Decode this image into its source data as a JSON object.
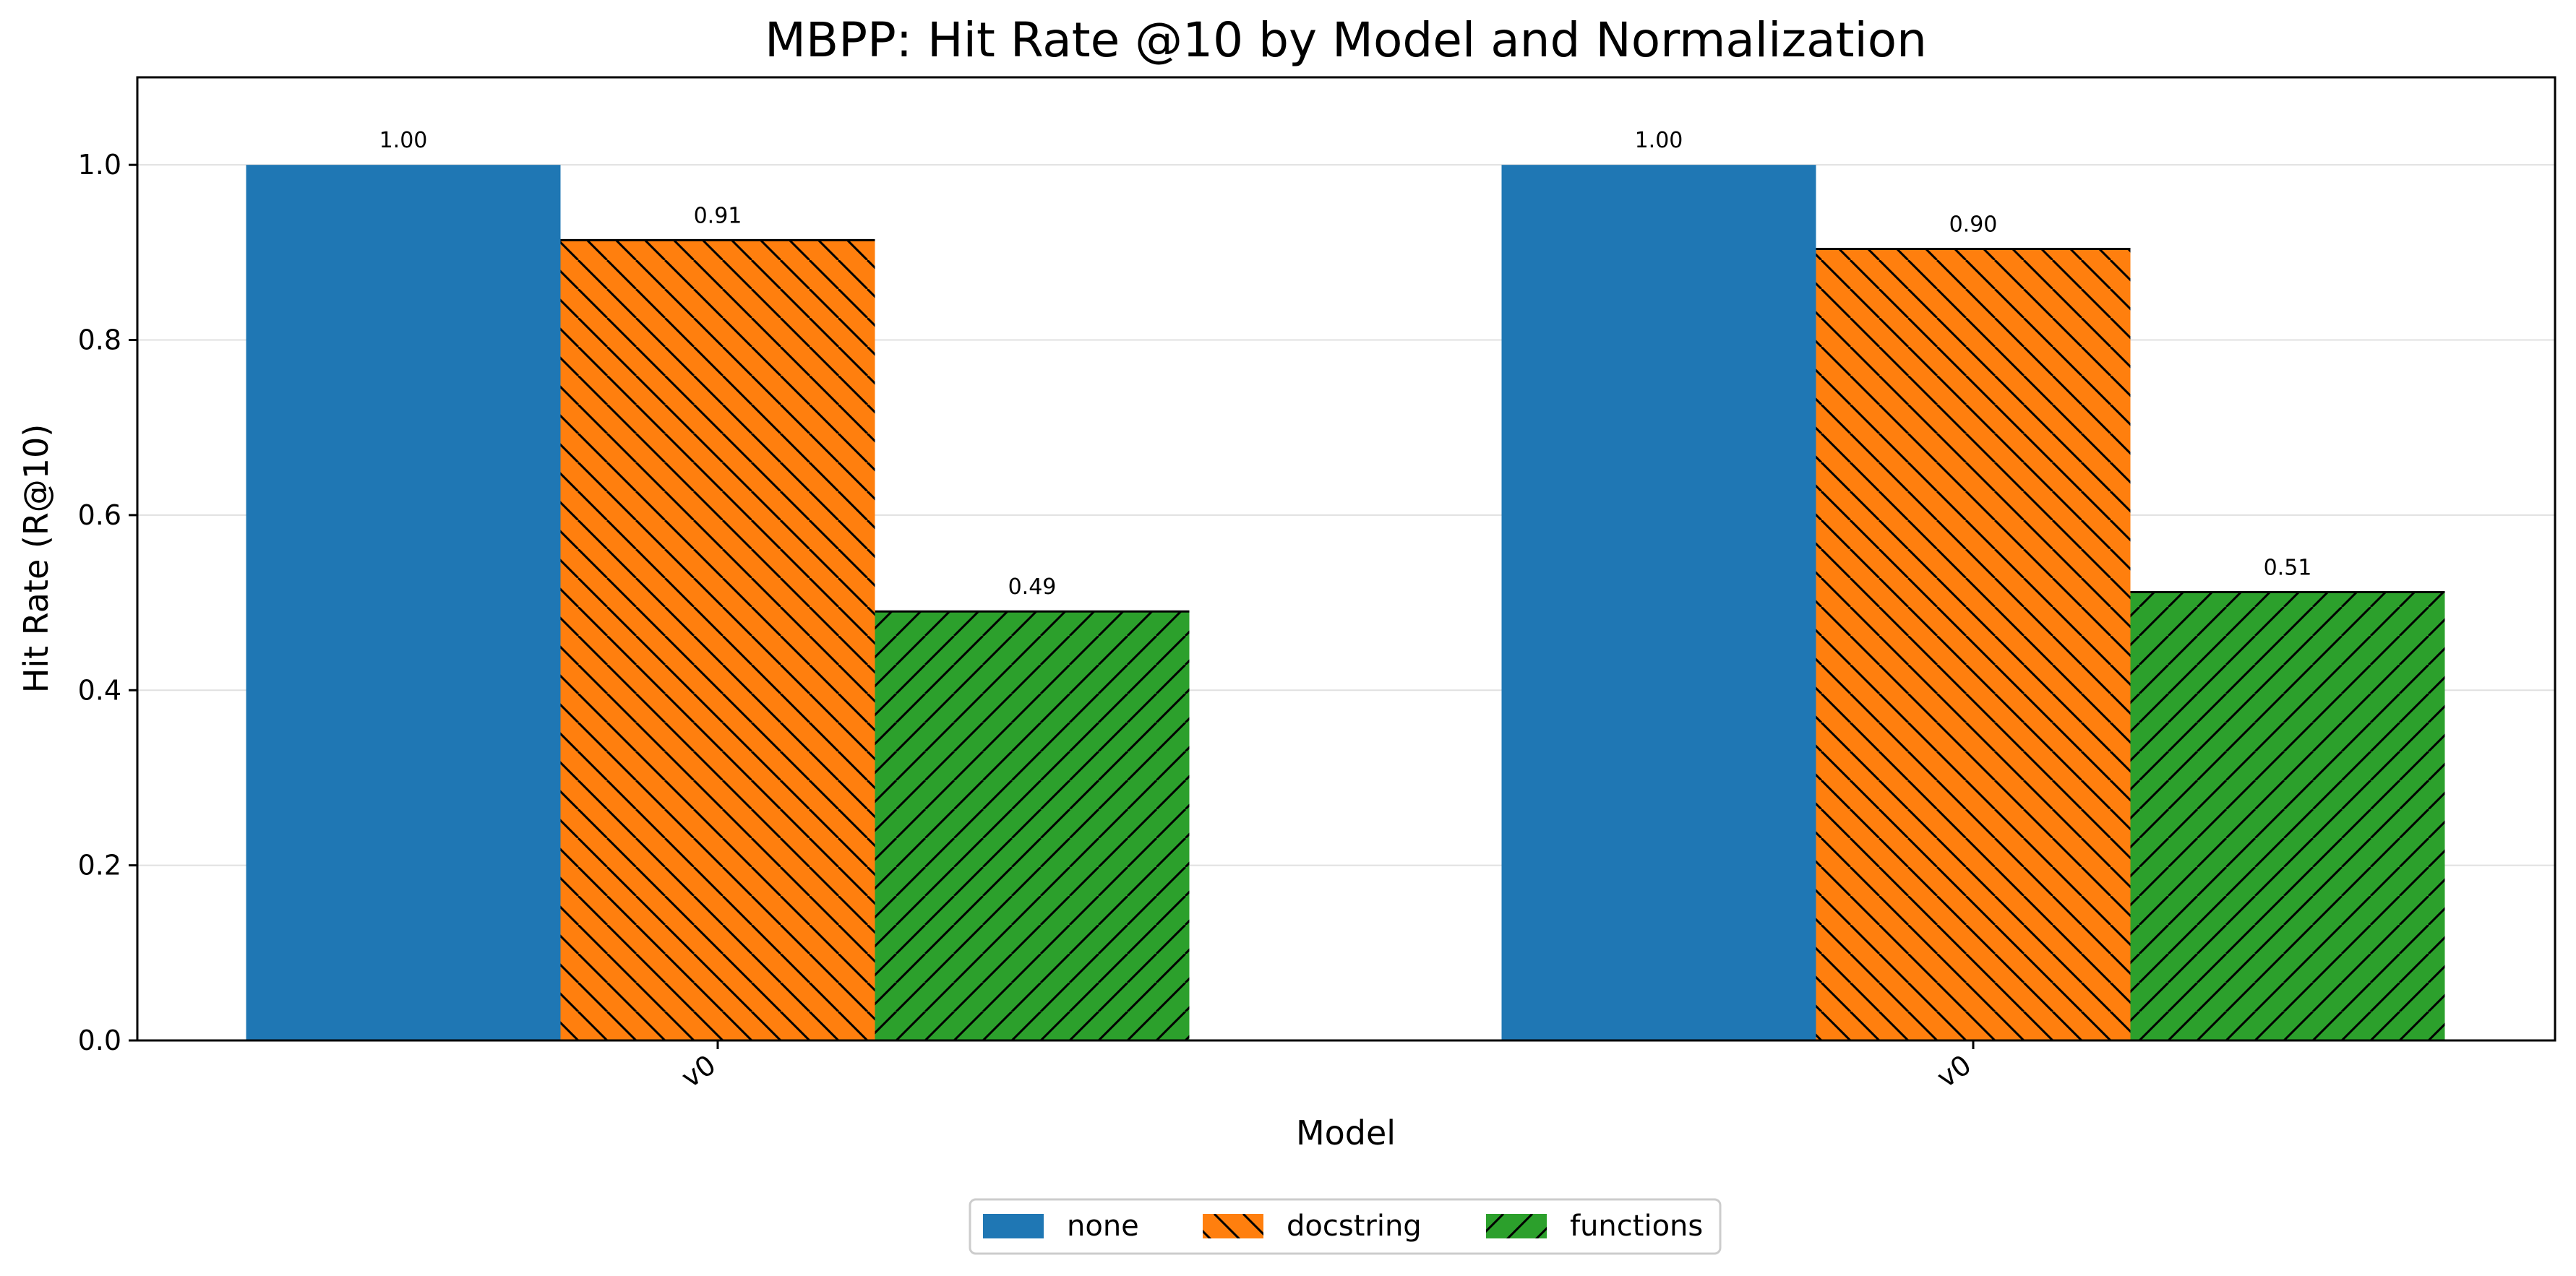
{
  "chart_data": {
    "type": "bar",
    "title": "MBPP: Hit Rate @10 by Model and Normalization",
    "xlabel": "Model",
    "ylabel": "Hit Rate (R@10)",
    "categories": [
      "v0",
      "v0"
    ],
    "ylim": [
      0,
      1.1
    ],
    "yticks": [
      0.0,
      0.2,
      0.4,
      0.6,
      0.8,
      1.0
    ],
    "grid": "horizontal",
    "legend_placement": "bottom-center",
    "series": [
      {
        "name": "none",
        "values": [
          1.0,
          1.0
        ],
        "labels": [
          "1.00",
          "1.00"
        ],
        "color": "#1f77b4",
        "hatch": "none"
      },
      {
        "name": "docstring",
        "values": [
          0.914,
          0.904
        ],
        "labels": [
          "0.91",
          "0.90"
        ],
        "color": "#ff7f0e",
        "hatch": "backslash"
      },
      {
        "name": "functions",
        "values": [
          0.49,
          0.512
        ],
        "labels": [
          "0.49",
          "0.51"
        ],
        "color": "#2ca02c",
        "hatch": "slash"
      }
    ]
  }
}
